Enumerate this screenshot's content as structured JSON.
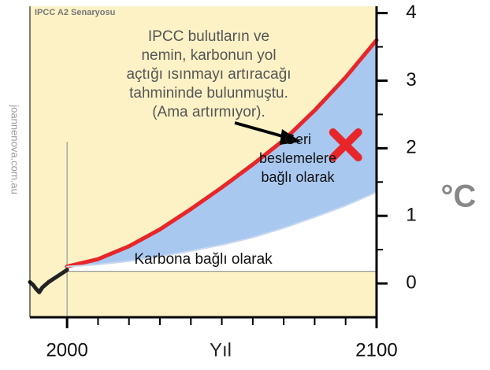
{
  "chart_data": {
    "type": "line",
    "title": "IPCC A2 Senaryosu",
    "credit": "joannenova.com.au",
    "xlabel": "Yıl",
    "ylabel": "°C",
    "xlim": [
      1988,
      2100
    ],
    "ylim": [
      -0.5,
      4.1
    ],
    "xticks": [
      2000,
      2100
    ],
    "xminor_ticks": [
      2010,
      2020,
      2030,
      2040,
      2050,
      2060,
      2070,
      2080,
      2090
    ],
    "yticks": [
      0,
      1,
      2,
      3,
      4
    ],
    "baseline": 0.18,
    "marker_year": 2000,
    "fill_color": "#a9c8f0",
    "series": [
      {
        "name": "Geri beslemelere bağlı olarak",
        "color": "#e8262a",
        "x": [
          2000,
          2010,
          2020,
          2030,
          2040,
          2050,
          2060,
          2070,
          2080,
          2090,
          2100
        ],
        "values": [
          0.25,
          0.36,
          0.55,
          0.8,
          1.1,
          1.42,
          1.76,
          2.12,
          2.56,
          3.05,
          3.6
        ]
      },
      {
        "name": "Karbona bağlı olarak",
        "color": "#c9d9ee",
        "x": [
          2000,
          2010,
          2020,
          2030,
          2040,
          2050,
          2060,
          2070,
          2080,
          2090,
          2100
        ],
        "values": [
          0.25,
          0.28,
          0.33,
          0.4,
          0.48,
          0.57,
          0.68,
          0.82,
          0.98,
          1.15,
          1.35
        ]
      },
      {
        "name": "Gözlem",
        "color": "#222222",
        "x": [
          1988,
          1989,
          1990,
          1991,
          1992,
          1994,
          1996,
          1998,
          2000
        ],
        "values": [
          0.02,
          -0.02,
          -0.08,
          -0.13,
          -0.06,
          0.02,
          0.08,
          0.14,
          0.2
        ]
      }
    ],
    "cross": {
      "x": 2090,
      "y": 2.05
    },
    "annotation_lines": [
      "IPCC bulutların ve",
      "nemin, karbonun yol",
      "açtığı ısınmayı artıracağı",
      "tahmininde bulunmuştu.",
      "(Ama artırmıyor)."
    ],
    "feedback_label_lines": [
      "Geri",
      "beslemelere",
      "bağlı olarak"
    ],
    "carbon_label": "Karbona bağlı olarak"
  }
}
